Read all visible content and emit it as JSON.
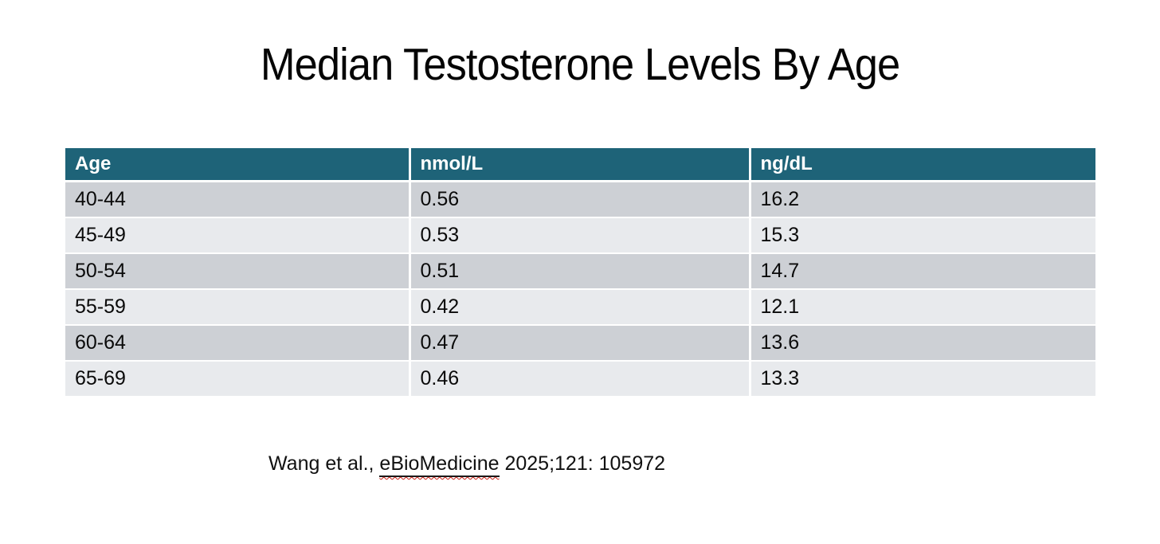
{
  "title": "Median Testosterone Levels By Age",
  "table": {
    "headers": [
      "Age",
      "nmol/L",
      "ng/dL"
    ],
    "rows": [
      [
        "40-44",
        "0.56",
        "16.2"
      ],
      [
        "45-49",
        "0.53",
        "15.3"
      ],
      [
        "50-54",
        "0.51",
        "14.7"
      ],
      [
        "55-59",
        "0.42",
        "12.1"
      ],
      [
        "60-64",
        "0.47",
        "13.6"
      ],
      [
        "65-69",
        "0.46",
        "13.3"
      ]
    ]
  },
  "citation": {
    "prefix": "Wang et al., ",
    "journal": "eBioMedicine",
    "suffix": " 2025;121: 105972"
  },
  "colors": {
    "header_bg": "#1E6378",
    "header_text": "#FFFFFF",
    "row_odd_bg": "#CDD0D5",
    "row_even_bg": "#E8EAED",
    "body_text": "#0A0A0A",
    "squiggle": "#C81E14",
    "background": "#FFFFFF"
  },
  "chart_data": {
    "type": "table",
    "title": "Median Testosterone Levels By Age",
    "columns": [
      "Age",
      "nmol/L",
      "ng/dL"
    ],
    "rows": [
      {
        "age": "40-44",
        "nmol_L": 0.56,
        "ng_dL": 16.2
      },
      {
        "age": "45-49",
        "nmol_L": 0.53,
        "ng_dL": 15.3
      },
      {
        "age": "50-54",
        "nmol_L": 0.51,
        "ng_dL": 14.7
      },
      {
        "age": "55-59",
        "nmol_L": 0.42,
        "ng_dL": 12.1
      },
      {
        "age": "60-64",
        "nmol_L": 0.47,
        "ng_dL": 13.6
      },
      {
        "age": "65-69",
        "nmol_L": 0.46,
        "ng_dL": 13.3
      }
    ],
    "source": "Wang et al., eBioMedicine 2025;121: 105972"
  }
}
